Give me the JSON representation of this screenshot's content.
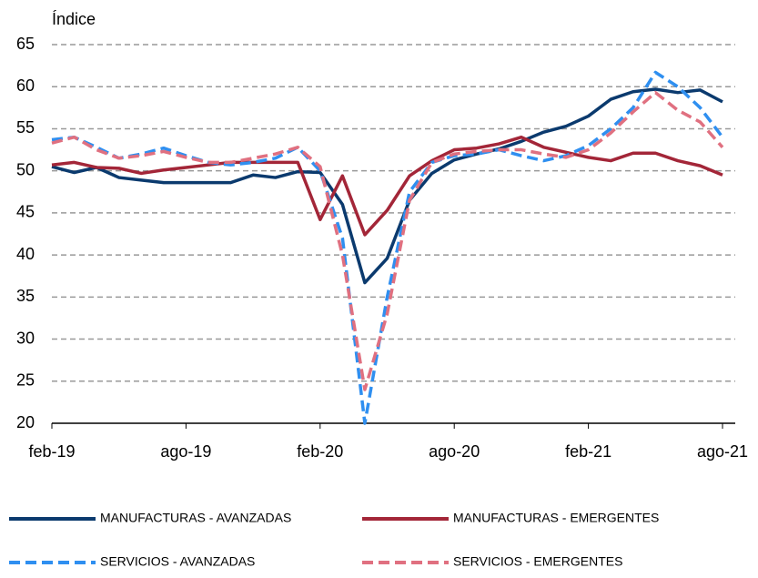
{
  "chart_data": {
    "type": "line",
    "y_label": "Índice",
    "categories": [
      "feb-19",
      null,
      null,
      null,
      null,
      null,
      "ago-19",
      null,
      null,
      null,
      null,
      null,
      "feb-20",
      null,
      null,
      null,
      null,
      null,
      "ago-20",
      null,
      null,
      null,
      null,
      null,
      "feb-21",
      null,
      null,
      null,
      null,
      null,
      "ago-21"
    ],
    "ylim": [
      20,
      65
    ],
    "yticks": [
      20,
      25,
      30,
      35,
      40,
      45,
      50,
      55,
      60,
      65
    ],
    "grid": true,
    "series": [
      {
        "name": "MANUFACTURAS - AVANZADAS",
        "color": "#0b3a6e",
        "dashed": false,
        "values": [
          50.5,
          49.8,
          50.4,
          49.2,
          48.9,
          48.6,
          48.6,
          48.6,
          48.6,
          49.5,
          49.2,
          49.9,
          49.8,
          46,
          36.7,
          39.6,
          46.5,
          49.7,
          51.3,
          52,
          52.6,
          53.5,
          54.6,
          55.3,
          56.5,
          58.5,
          59.4,
          59.7,
          59.3,
          59.6,
          58.2
        ]
      },
      {
        "name": "MANUFACTURAS - EMERGENTES",
        "color": "#a32638",
        "dashed": false,
        "values": [
          50.7,
          51,
          50.4,
          50.3,
          49.7,
          50.1,
          50.4,
          50.7,
          51,
          51,
          51,
          51,
          44.2,
          49.4,
          42.4,
          45.3,
          49.4,
          51.2,
          52.5,
          52.7,
          53.2,
          54,
          52.8,
          52.2,
          51.6,
          51.2,
          52.1,
          52.1,
          51.2,
          50.6,
          49.5
        ]
      },
      {
        "name": "SERVICIOS - AVANZADAS",
        "color": "#2f8ff0",
        "dashed": true,
        "values": [
          53.7,
          54,
          52.8,
          51.5,
          52,
          52.7,
          51.8,
          51,
          50.7,
          51,
          51.5,
          52.8,
          50,
          42,
          20,
          35,
          47.5,
          51,
          51.8,
          52,
          52.5,
          51.8,
          51.2,
          51.8,
          53,
          55,
          57.5,
          61.7,
          60,
          57.5,
          54
        ]
      },
      {
        "name": "SERVICIOS - EMERGENTES",
        "color": "#e07080",
        "dashed": true,
        "values": [
          53.3,
          54,
          52.5,
          51.5,
          51.8,
          52.3,
          51.6,
          51,
          51,
          51.5,
          52,
          52.8,
          50.5,
          40,
          24,
          33,
          46.5,
          51,
          52,
          52.3,
          52.5,
          52.5,
          52,
          51.6,
          52.5,
          54.5,
          57,
          59.3,
          57.2,
          55.8,
          52.8
        ]
      }
    ]
  }
}
